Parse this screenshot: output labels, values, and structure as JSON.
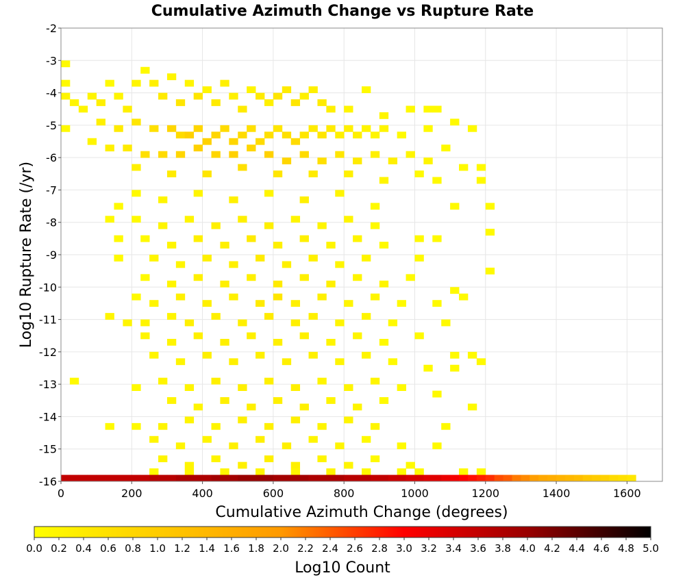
{
  "chart_data": {
    "type": "heatmap",
    "title": "Cumulative Azimuth Change vs Rupture Rate",
    "xlabel": "Cumulative Azimuth Change (degrees)",
    "ylabel": "Log10 Rupture Rate (/yr)",
    "xlim": [
      0,
      1700
    ],
    "ylim": [
      -16,
      -2
    ],
    "x_ticks": [
      "0",
      "200",
      "400",
      "600",
      "800",
      "1000",
      "1200",
      "1400",
      "1600"
    ],
    "y_ticks": [
      "-2",
      "-3",
      "-4",
      "-5",
      "-6",
      "-7",
      "-8",
      "-9",
      "-10",
      "-11",
      "-12",
      "-13",
      "-14",
      "-15",
      "-16"
    ],
    "grid": true,
    "bin": {
      "dx": 25,
      "dy": 0.2
    },
    "colorbar": {
      "label": "Log10 Count",
      "min": 0.0,
      "max": 5.0,
      "ticks": [
        "0.0",
        "0.2",
        "0.4",
        "0.6",
        "0.8",
        "1.0",
        "1.2",
        "1.4",
        "1.6",
        "1.8",
        "2.0",
        "2.2",
        "2.4",
        "2.6",
        "2.8",
        "3.0",
        "3.2",
        "3.4",
        "3.6",
        "3.8",
        "4.0",
        "4.2",
        "4.4",
        "4.6",
        "4.8",
        "5.0"
      ],
      "colors": [
        "#ffff00",
        "#ffcc00",
        "#ff9900",
        "#ff0000",
        "#990000",
        "#000000"
      ]
    },
    "cells": [
      [
        0,
        -3.1,
        0.1
      ],
      [
        0,
        -3.7,
        0.1
      ],
      [
        0,
        -4.1,
        0.2
      ],
      [
        0,
        -5.1,
        0.1
      ],
      [
        25,
        -4.3,
        0.2
      ],
      [
        50,
        -4.5,
        0.2
      ],
      [
        75,
        -4.1,
        0.2
      ],
      [
        100,
        -4.3,
        0.3
      ],
      [
        125,
        -3.7,
        0.1
      ],
      [
        150,
        -4.1,
        0.2
      ],
      [
        175,
        -4.5,
        0.3
      ],
      [
        200,
        -3.7,
        0.2
      ],
      [
        225,
        -3.3,
        0.1
      ],
      [
        250,
        -3.7,
        0.3
      ],
      [
        275,
        -4.1,
        0.4
      ],
      [
        300,
        -3.5,
        0.2
      ],
      [
        325,
        -4.3,
        0.5
      ],
      [
        350,
        -3.7,
        0.2
      ],
      [
        375,
        -4.1,
        0.5
      ],
      [
        400,
        -3.9,
        0.2
      ],
      [
        425,
        -4.3,
        0.4
      ],
      [
        450,
        -3.7,
        0.3
      ],
      [
        475,
        -4.1,
        0.3
      ],
      [
        500,
        -4.5,
        0.4
      ],
      [
        525,
        -3.9,
        0.2
      ],
      [
        550,
        -4.1,
        0.4
      ],
      [
        575,
        -4.3,
        0.3
      ],
      [
        600,
        -4.1,
        0.5
      ],
      [
        625,
        -3.9,
        0.4
      ],
      [
        650,
        -4.3,
        0.5
      ],
      [
        675,
        -4.1,
        0.3
      ],
      [
        700,
        -3.9,
        0.3
      ],
      [
        725,
        -4.3,
        0.4
      ],
      [
        750,
        -4.5,
        0.3
      ],
      [
        800,
        -4.5,
        0.2
      ],
      [
        850,
        -3.9,
        0.1
      ],
      [
        900,
        -4.7,
        0.2
      ],
      [
        975,
        -4.5,
        0.1
      ],
      [
        1025,
        -4.5,
        0.1
      ],
      [
        1050,
        -4.5,
        0.1
      ],
      [
        1100,
        -4.9,
        0.1
      ],
      [
        100,
        -4.9,
        0.3
      ],
      [
        150,
        -5.1,
        0.4
      ],
      [
        200,
        -4.9,
        0.5
      ],
      [
        250,
        -5.1,
        0.6
      ],
      [
        300,
        -5.1,
        0.8
      ],
      [
        325,
        -5.3,
        0.7
      ],
      [
        350,
        -5.3,
        0.9
      ],
      [
        375,
        -5.1,
        0.8
      ],
      [
        400,
        -5.5,
        0.9
      ],
      [
        425,
        -5.3,
        0.8
      ],
      [
        450,
        -5.1,
        0.7
      ],
      [
        475,
        -5.5,
        0.8
      ],
      [
        500,
        -5.3,
        0.7
      ],
      [
        525,
        -5.1,
        0.6
      ],
      [
        550,
        -5.5,
        0.7
      ],
      [
        575,
        -5.3,
        0.6
      ],
      [
        600,
        -5.1,
        0.5
      ],
      [
        625,
        -5.3,
        0.6
      ],
      [
        650,
        -5.5,
        0.7
      ],
      [
        675,
        -5.3,
        0.5
      ],
      [
        700,
        -5.1,
        0.4
      ],
      [
        725,
        -5.3,
        0.5
      ],
      [
        750,
        -5.1,
        0.4
      ],
      [
        775,
        -5.3,
        0.3
      ],
      [
        800,
        -5.1,
        0.3
      ],
      [
        825,
        -5.3,
        0.3
      ],
      [
        850,
        -5.1,
        0.2
      ],
      [
        875,
        -5.3,
        0.2
      ],
      [
        900,
        -5.1,
        0.2
      ],
      [
        950,
        -5.3,
        0.1
      ],
      [
        1025,
        -5.1,
        0.1
      ],
      [
        1150,
        -5.1,
        0.1
      ],
      [
        75,
        -5.5,
        0.2
      ],
      [
        125,
        -5.7,
        0.3
      ],
      [
        175,
        -5.7,
        0.4
      ],
      [
        225,
        -5.9,
        0.6
      ],
      [
        275,
        -5.9,
        0.7
      ],
      [
        325,
        -5.9,
        0.8
      ],
      [
        375,
        -5.7,
        0.9
      ],
      [
        425,
        -5.9,
        0.8
      ],
      [
        475,
        -5.9,
        0.9
      ],
      [
        525,
        -5.7,
        0.8
      ],
      [
        575,
        -5.9,
        0.9
      ],
      [
        625,
        -6.1,
        0.8
      ],
      [
        675,
        -5.9,
        0.7
      ],
      [
        725,
        -6.1,
        0.6
      ],
      [
        775,
        -5.9,
        0.5
      ],
      [
        825,
        -6.1,
        0.4
      ],
      [
        875,
        -5.9,
        0.3
      ],
      [
        925,
        -6.1,
        0.3
      ],
      [
        975,
        -5.9,
        0.2
      ],
      [
        1025,
        -6.1,
        0.2
      ],
      [
        1075,
        -5.7,
        0.1
      ],
      [
        1125,
        -6.3,
        0.1
      ],
      [
        1175,
        -6.3,
        0.1
      ],
      [
        200,
        -6.3,
        0.3
      ],
      [
        300,
        -6.5,
        0.4
      ],
      [
        400,
        -6.5,
        0.5
      ],
      [
        500,
        -6.3,
        0.6
      ],
      [
        600,
        -6.5,
        0.5
      ],
      [
        700,
        -6.5,
        0.4
      ],
      [
        800,
        -6.5,
        0.3
      ],
      [
        900,
        -6.7,
        0.2
      ],
      [
        1000,
        -6.5,
        0.1
      ],
      [
        1050,
        -6.7,
        0.1
      ],
      [
        1175,
        -6.7,
        0.1
      ],
      [
        200,
        -7.1,
        0.1
      ],
      [
        275,
        -7.3,
        0.2
      ],
      [
        375,
        -7.1,
        0.2
      ],
      [
        475,
        -7.3,
        0.3
      ],
      [
        575,
        -7.1,
        0.2
      ],
      [
        675,
        -7.3,
        0.3
      ],
      [
        775,
        -7.1,
        0.2
      ],
      [
        875,
        -7.5,
        0.1
      ],
      [
        150,
        -7.5,
        0.1
      ],
      [
        1100,
        -7.5,
        0.1
      ],
      [
        1200,
        -7.5,
        0.1
      ],
      [
        125,
        -7.9,
        0.1
      ],
      [
        200,
        -7.9,
        0.1
      ],
      [
        275,
        -8.1,
        0.2
      ],
      [
        350,
        -7.9,
        0.2
      ],
      [
        425,
        -8.1,
        0.3
      ],
      [
        500,
        -7.9,
        0.3
      ],
      [
        575,
        -8.1,
        0.3
      ],
      [
        650,
        -7.9,
        0.2
      ],
      [
        725,
        -8.1,
        0.2
      ],
      [
        800,
        -7.9,
        0.2
      ],
      [
        875,
        -8.1,
        0.1
      ],
      [
        150,
        -8.5,
        0.1
      ],
      [
        225,
        -8.5,
        0.1
      ],
      [
        300,
        -8.7,
        0.2
      ],
      [
        375,
        -8.5,
        0.3
      ],
      [
        450,
        -8.7,
        0.3
      ],
      [
        525,
        -8.5,
        0.4
      ],
      [
        600,
        -8.7,
        0.3
      ],
      [
        675,
        -8.5,
        0.3
      ],
      [
        750,
        -8.7,
        0.2
      ],
      [
        825,
        -8.5,
        0.2
      ],
      [
        900,
        -8.7,
        0.1
      ],
      [
        1000,
        -8.5,
        0.1
      ],
      [
        1050,
        -8.5,
        0.1
      ],
      [
        1200,
        -8.3,
        0.1
      ],
      [
        150,
        -9.1,
        0.1
      ],
      [
        250,
        -9.1,
        0.2
      ],
      [
        325,
        -9.3,
        0.2
      ],
      [
        400,
        -9.1,
        0.3
      ],
      [
        475,
        -9.3,
        0.3
      ],
      [
        550,
        -9.1,
        0.4
      ],
      [
        625,
        -9.3,
        0.3
      ],
      [
        700,
        -9.1,
        0.3
      ],
      [
        775,
        -9.3,
        0.2
      ],
      [
        850,
        -9.1,
        0.2
      ],
      [
        1000,
        -9.1,
        0.1
      ],
      [
        1200,
        -9.5,
        0.1
      ],
      [
        225,
        -9.7,
        0.1
      ],
      [
        300,
        -9.9,
        0.2
      ],
      [
        375,
        -9.7,
        0.3
      ],
      [
        450,
        -9.9,
        0.3
      ],
      [
        525,
        -9.7,
        0.3
      ],
      [
        600,
        -9.9,
        0.4
      ],
      [
        675,
        -9.7,
        0.3
      ],
      [
        750,
        -9.9,
        0.3
      ],
      [
        825,
        -9.7,
        0.2
      ],
      [
        900,
        -9.9,
        0.2
      ],
      [
        975,
        -9.7,
        0.1
      ],
      [
        1100,
        -10.1,
        0.1
      ],
      [
        1125,
        -10.3,
        0.1
      ],
      [
        200,
        -10.3,
        0.1
      ],
      [
        250,
        -10.5,
        0.2
      ],
      [
        325,
        -10.3,
        0.3
      ],
      [
        400,
        -10.5,
        0.3
      ],
      [
        475,
        -10.3,
        0.3
      ],
      [
        550,
        -10.5,
        0.4
      ],
      [
        600,
        -10.3,
        0.5
      ],
      [
        650,
        -10.5,
        0.3
      ],
      [
        725,
        -10.3,
        0.3
      ],
      [
        800,
        -10.5,
        0.2
      ],
      [
        875,
        -10.3,
        0.2
      ],
      [
        950,
        -10.5,
        0.1
      ],
      [
        1050,
        -10.5,
        0.1
      ],
      [
        125,
        -10.9,
        0.2
      ],
      [
        175,
        -11.1,
        0.2
      ],
      [
        225,
        -11.1,
        0.2
      ],
      [
        300,
        -10.9,
        0.2
      ],
      [
        350,
        -11.1,
        0.3
      ],
      [
        425,
        -10.9,
        0.3
      ],
      [
        500,
        -11.1,
        0.3
      ],
      [
        575,
        -10.9,
        0.4
      ],
      [
        650,
        -11.1,
        0.3
      ],
      [
        700,
        -10.9,
        0.3
      ],
      [
        775,
        -11.1,
        0.2
      ],
      [
        850,
        -10.9,
        0.2
      ],
      [
        925,
        -11.1,
        0.1
      ],
      [
        1075,
        -11.1,
        0.1
      ],
      [
        225,
        -11.5,
        0.2
      ],
      [
        300,
        -11.7,
        0.2
      ],
      [
        375,
        -11.5,
        0.3
      ],
      [
        450,
        -11.7,
        0.3
      ],
      [
        525,
        -11.5,
        0.3
      ],
      [
        600,
        -11.7,
        0.3
      ],
      [
        675,
        -11.5,
        0.3
      ],
      [
        750,
        -11.7,
        0.2
      ],
      [
        825,
        -11.5,
        0.2
      ],
      [
        900,
        -11.7,
        0.1
      ],
      [
        1000,
        -11.5,
        0.1
      ],
      [
        1100,
        -12.1,
        0.1
      ],
      [
        1150,
        -12.1,
        0.1
      ],
      [
        250,
        -12.1,
        0.2
      ],
      [
        325,
        -12.3,
        0.2
      ],
      [
        400,
        -12.1,
        0.3
      ],
      [
        475,
        -12.3,
        0.3
      ],
      [
        550,
        -12.1,
        0.3
      ],
      [
        625,
        -12.3,
        0.3
      ],
      [
        700,
        -12.1,
        0.3
      ],
      [
        775,
        -12.3,
        0.2
      ],
      [
        850,
        -12.1,
        0.2
      ],
      [
        925,
        -12.3,
        0.1
      ],
      [
        1025,
        -12.5,
        0.1
      ],
      [
        1100,
        -12.5,
        0.1
      ],
      [
        1175,
        -12.3,
        0.1
      ],
      [
        25,
        -12.9,
        0.1
      ],
      [
        200,
        -13.1,
        0.1
      ],
      [
        275,
        -12.9,
        0.2
      ],
      [
        350,
        -13.1,
        0.2
      ],
      [
        425,
        -12.9,
        0.3
      ],
      [
        500,
        -13.1,
        0.3
      ],
      [
        575,
        -12.9,
        0.3
      ],
      [
        650,
        -13.1,
        0.3
      ],
      [
        725,
        -12.9,
        0.2
      ],
      [
        800,
        -13.1,
        0.2
      ],
      [
        875,
        -12.9,
        0.2
      ],
      [
        950,
        -13.1,
        0.1
      ],
      [
        1050,
        -13.3,
        0.1
      ],
      [
        300,
        -13.5,
        0.2
      ],
      [
        375,
        -13.7,
        0.2
      ],
      [
        450,
        -13.5,
        0.3
      ],
      [
        525,
        -13.7,
        0.3
      ],
      [
        600,
        -13.5,
        0.3
      ],
      [
        675,
        -13.7,
        0.3
      ],
      [
        750,
        -13.5,
        0.2
      ],
      [
        825,
        -13.7,
        0.2
      ],
      [
        900,
        -13.5,
        0.1
      ],
      [
        1150,
        -13.7,
        0.1
      ],
      [
        125,
        -14.3,
        0.1
      ],
      [
        200,
        -14.3,
        0.1
      ],
      [
        275,
        -14.3,
        0.2
      ],
      [
        350,
        -14.1,
        0.2
      ],
      [
        425,
        -14.3,
        0.2
      ],
      [
        500,
        -14.1,
        0.3
      ],
      [
        575,
        -14.3,
        0.3
      ],
      [
        650,
        -14.1,
        0.3
      ],
      [
        725,
        -14.3,
        0.2
      ],
      [
        800,
        -14.1,
        0.2
      ],
      [
        875,
        -14.3,
        0.2
      ],
      [
        1075,
        -14.3,
        0.1
      ],
      [
        250,
        -14.7,
        0.2
      ],
      [
        325,
        -14.9,
        0.2
      ],
      [
        400,
        -14.7,
        0.2
      ],
      [
        475,
        -14.9,
        0.3
      ],
      [
        550,
        -14.7,
        0.3
      ],
      [
        625,
        -14.9,
        0.3
      ],
      [
        700,
        -14.7,
        0.2
      ],
      [
        775,
        -14.9,
        0.2
      ],
      [
        850,
        -14.7,
        0.1
      ],
      [
        950,
        -14.9,
        0.1
      ],
      [
        1050,
        -14.9,
        0.1
      ],
      [
        275,
        -15.3,
        0.2
      ],
      [
        350,
        -15.5,
        0.2
      ],
      [
        425,
        -15.3,
        0.2
      ],
      [
        500,
        -15.5,
        0.3
      ],
      [
        575,
        -15.3,
        0.3
      ],
      [
        650,
        -15.5,
        0.3
      ],
      [
        725,
        -15.3,
        0.2
      ],
      [
        800,
        -15.5,
        0.2
      ],
      [
        875,
        -15.3,
        0.1
      ],
      [
        975,
        -15.5,
        0.1
      ],
      [
        250,
        -15.7,
        0.1
      ],
      [
        350,
        -15.7,
        0.2
      ],
      [
        450,
        -15.7,
        0.2
      ],
      [
        550,
        -15.7,
        0.2
      ],
      [
        650,
        -15.7,
        0.2
      ],
      [
        750,
        -15.7,
        0.2
      ],
      [
        850,
        -15.7,
        0.1
      ],
      [
        950,
        -15.7,
        0.1
      ],
      [
        1000,
        -15.7,
        0.1
      ],
      [
        1125,
        -15.7,
        0.1
      ],
      [
        1175,
        -15.7,
        0.1
      ]
    ],
    "floor_row": {
      "y": -15.9,
      "x_values": [
        0,
        25,
        50,
        75,
        100,
        125,
        150,
        175,
        200,
        225,
        250,
        275,
        300,
        325,
        350,
        375,
        400,
        425,
        450,
        475,
        500,
        525,
        550,
        575,
        600,
        625,
        650,
        675,
        700,
        725,
        750,
        775,
        800,
        825,
        850,
        875,
        900,
        925,
        950,
        975,
        1000,
        1025,
        1050,
        1075,
        1100,
        1125,
        1150,
        1175,
        1200,
        1225,
        1250,
        1275,
        1300,
        1325,
        1350,
        1375,
        1400,
        1425,
        1450,
        1475,
        1500,
        1525,
        1550,
        1575,
        1600
      ],
      "values": [
        3.6,
        3.6,
        3.6,
        3.6,
        3.6,
        3.6,
        3.6,
        3.6,
        3.6,
        3.6,
        3.7,
        3.7,
        3.7,
        3.8,
        3.8,
        3.8,
        3.8,
        3.9,
        3.9,
        3.9,
        4.0,
        4.0,
        4.0,
        4.0,
        3.9,
        3.9,
        3.9,
        3.9,
        3.8,
        3.8,
        3.8,
        3.8,
        3.7,
        3.7,
        3.7,
        3.6,
        3.6,
        3.5,
        3.5,
        3.4,
        3.4,
        3.3,
        3.3,
        3.2,
        3.1,
        3.0,
        2.9,
        2.8,
        2.7,
        2.5,
        2.4,
        2.2,
        2.1,
        1.9,
        1.7,
        1.6,
        1.5,
        1.4,
        1.3,
        1.1,
        1.0,
        0.9,
        0.7,
        0.6,
        0.5
      ]
    }
  }
}
